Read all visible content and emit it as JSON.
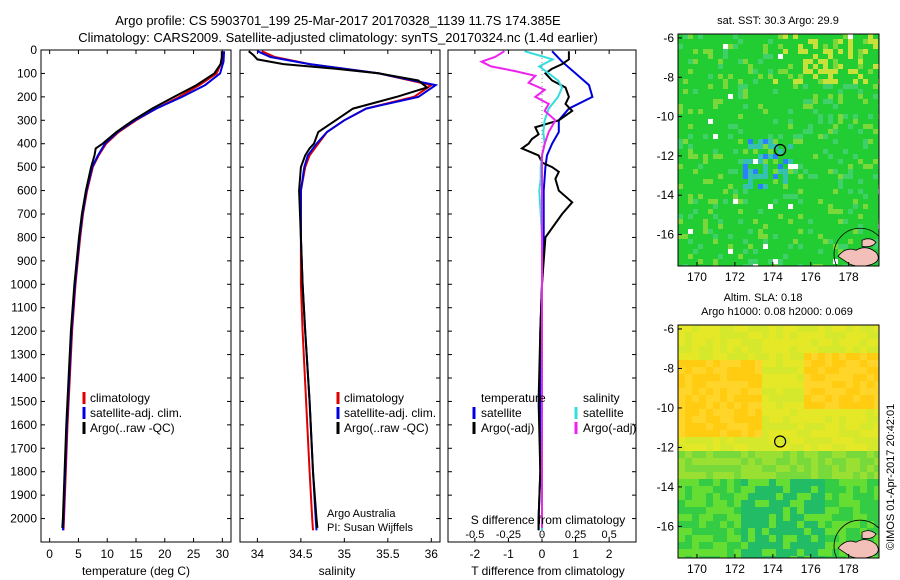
{
  "title_line1": "Argo profile: CS 5903701_199 25-Mar-2017 20170328_1139 11.7S 174.385E",
  "title_line2": "Climatology: CARS2009. Satellite-adjusted climatology: synTS_20170324.nc (1.4d earlier)",
  "side_stamp": "©IMOS 01-Apr-2017 20:42:01",
  "colors": {
    "climatology": "#dd0000",
    "satellite": "#0000dd",
    "argo": "#000000",
    "sal_satellite": "#33dddd",
    "sal_argo": "#ee22ee"
  },
  "chart_data": [
    {
      "type": "line",
      "id": "temperature",
      "xlabel": "temperature (deg C)",
      "ylabel": "depth",
      "xlim": [
        -1.5,
        31.5
      ],
      "ylim": [
        2100,
        0
      ],
      "xticks": [
        0,
        5,
        10,
        15,
        20,
        25,
        30
      ],
      "yticks": [
        0,
        100,
        200,
        300,
        400,
        500,
        600,
        700,
        800,
        900,
        1000,
        1100,
        1200,
        1300,
        1400,
        1500,
        1600,
        1700,
        1800,
        1900,
        2000
      ],
      "legend": [
        "climatology",
        "satellite-adj. clim.",
        "Argo(..raw -QC)"
      ],
      "series": [
        {
          "name": "climatology",
          "depth": [
            5,
            50,
            100,
            150,
            200,
            250,
            300,
            350,
            400,
            450,
            500,
            600,
            700,
            800,
            900,
            1000,
            1200,
            1400,
            1600,
            1800,
            2000,
            2050
          ],
          "values": [
            30.0,
            29.9,
            29.0,
            26.0,
            22.5,
            18.5,
            15.0,
            12.0,
            9.8,
            8.5,
            7.5,
            6.5,
            5.8,
            5.3,
            4.9,
            4.5,
            3.9,
            3.5,
            3.1,
            2.8,
            2.5,
            2.4
          ]
        },
        {
          "name": "satellite-adj. clim.",
          "depth": [
            5,
            50,
            100,
            150,
            200,
            250,
            300,
            350,
            400,
            450,
            500,
            600,
            700,
            800,
            900,
            1000,
            1200,
            1400,
            1600,
            1800,
            2000,
            2050
          ],
          "values": [
            30.3,
            30.2,
            29.6,
            27.0,
            23.0,
            18.5,
            14.8,
            11.8,
            9.6,
            8.4,
            7.4,
            6.4,
            5.7,
            5.2,
            4.8,
            4.4,
            3.8,
            3.4,
            3.0,
            2.7,
            2.4,
            2.3
          ]
        },
        {
          "name": "Argo(..raw -QC)",
          "depth": [
            5,
            30,
            60,
            100,
            150,
            200,
            250,
            300,
            350,
            400,
            420,
            450,
            500,
            600,
            700,
            800,
            900,
            1000,
            1200,
            1400,
            1600,
            1800,
            2000,
            2040
          ],
          "values": [
            29.9,
            29.9,
            29.7,
            28.6,
            25.5,
            21.6,
            17.8,
            14.5,
            11.6,
            9.2,
            8.0,
            7.8,
            7.2,
            6.3,
            5.6,
            5.1,
            4.7,
            4.3,
            3.7,
            3.3,
            2.9,
            2.6,
            2.3,
            2.2
          ]
        }
      ]
    },
    {
      "type": "line",
      "id": "salinity",
      "xlabel": "salinity",
      "ylim": [
        2100,
        0
      ],
      "xlim": [
        33.8,
        36.1
      ],
      "xticks": [
        34,
        34.5,
        35,
        35.5,
        36
      ],
      "legend": [
        "climatology",
        "satellite-adj. clim.",
        "Argo(..raw -QC)"
      ],
      "annotation": [
        "Argo Australia",
        "PI: Susan Wijffels"
      ],
      "series": [
        {
          "name": "climatology",
          "depth": [
            5,
            30,
            60,
            100,
            150,
            200,
            250,
            300,
            350,
            400,
            450,
            500,
            600,
            800,
            1000,
            1200,
            1500,
            1800,
            2000,
            2050
          ],
          "values": [
            34.05,
            34.2,
            34.6,
            35.4,
            36.0,
            35.8,
            35.25,
            35.0,
            34.8,
            34.7,
            34.6,
            34.55,
            34.5,
            34.5,
            34.5,
            34.52,
            34.56,
            34.6,
            34.63,
            34.64
          ]
        },
        {
          "name": "satellite-adj. clim.",
          "depth": [
            5,
            30,
            60,
            100,
            150,
            200,
            250,
            300,
            350,
            400,
            450,
            500,
            600,
            800,
            1000,
            1200,
            1500,
            1800,
            2000,
            2050
          ],
          "values": [
            34.0,
            34.15,
            34.6,
            35.4,
            36.05,
            35.85,
            35.25,
            35.0,
            34.8,
            34.68,
            34.58,
            34.54,
            34.5,
            34.5,
            34.52,
            34.55,
            34.6,
            34.64,
            34.67,
            34.68
          ]
        },
        {
          "name": "Argo(..raw -QC)",
          "depth": [
            5,
            20,
            40,
            60,
            80,
            100,
            130,
            160,
            200,
            250,
            300,
            350,
            400,
            420,
            450,
            500,
            600,
            800,
            1000,
            1200,
            1500,
            1800,
            2000,
            2040
          ],
          "values": [
            33.9,
            33.95,
            34.0,
            34.3,
            34.9,
            35.4,
            35.85,
            35.95,
            35.6,
            35.1,
            34.9,
            34.7,
            34.65,
            34.6,
            34.55,
            34.5,
            34.48,
            34.5,
            34.52,
            34.55,
            34.6,
            34.64,
            34.68,
            34.69
          ]
        }
      ]
    },
    {
      "type": "line",
      "id": "difference",
      "xlabel": "T difference from climatology",
      "xlabel_top": "S difference from climatology",
      "xlim": [
        -2.8,
        2.8
      ],
      "ylim": [
        2100,
        0
      ],
      "xticks": [
        -2,
        -1,
        0,
        1,
        2
      ],
      "sticks": [
        "-0.5",
        "-0.25",
        "0",
        "0.25",
        "0.5"
      ],
      "legend_titles": [
        "temperature",
        "salinity"
      ],
      "legend": [
        "satellite",
        "Argo(-adj)",
        "satellite",
        "Argo(-adj)"
      ],
      "series": [
        {
          "name": "temperature satellite",
          "depth": [
            5,
            50,
            100,
            150,
            200,
            250,
            300,
            350,
            400,
            450,
            500,
            600,
            700,
            800,
            1000,
            1200,
            1500,
            1800,
            2000,
            2050
          ],
          "values": [
            0.3,
            0.6,
            1.0,
            1.4,
            1.5,
            0.8,
            0.5,
            0.5,
            0.3,
            0.15,
            0.1,
            0.05,
            0.05,
            0.05,
            0.0,
            -0.05,
            -0.05,
            -0.05,
            -0.1,
            -0.1
          ]
        },
        {
          "name": "temperature Argo(-adj)",
          "depth": [
            5,
            40,
            60,
            80,
            100,
            130,
            160,
            200,
            230,
            260,
            300,
            330,
            360,
            380,
            400,
            420,
            450,
            480,
            500,
            520,
            550,
            600,
            650,
            700,
            800,
            1000,
            1200,
            1500,
            1800,
            2000,
            2050
          ],
          "values": [
            0.8,
            0.8,
            0.6,
            0.3,
            0.1,
            0.3,
            0.7,
            0.8,
            0.7,
            0.9,
            0.5,
            -0.2,
            -0.1,
            -0.3,
            -0.4,
            -0.6,
            -0.1,
            0.0,
            0.3,
            0.5,
            0.4,
            0.5,
            0.9,
            0.6,
            0.1,
            0.0,
            -0.05,
            -0.1,
            -0.05,
            -0.1,
            -0.1
          ]
        }
      ],
      "series_salinity": [
        {
          "name": "salinity satellite",
          "depth": [
            5,
            40,
            70,
            100,
            130,
            160,
            200,
            250,
            300,
            350,
            400,
            450,
            500,
            550,
            600,
            700,
            800,
            1000,
            1200,
            1500,
            1800,
            2000,
            2050
          ],
          "values": [
            -0.13,
            0.08,
            -0.02,
            0.05,
            0.12,
            0.15,
            0.12,
            0.05,
            0.02,
            0.01,
            0.02,
            0.0,
            -0.01,
            -0.01,
            -0.02,
            -0.01,
            0.0,
            0.0,
            0.0,
            0.0,
            0.0,
            0.0,
            0.0
          ]
        },
        {
          "name": "salinity Argo(-adj)",
          "depth": [
            5,
            30,
            50,
            70,
            90,
            110,
            140,
            170,
            200,
            230,
            260,
            300,
            350,
            400,
            450,
            500,
            600,
            800,
            1000,
            1200,
            1500,
            1800,
            2000,
            2040
          ],
          "values": [
            -0.28,
            -0.35,
            -0.45,
            -0.38,
            -0.2,
            -0.05,
            -0.1,
            0.02,
            -0.05,
            0.05,
            0.02,
            0.1,
            0.05,
            0.02,
            0.0,
            0.0,
            0.0,
            0.0,
            0.0,
            0.0,
            0.0,
            0.0,
            0.0,
            0.0
          ]
        }
      ]
    },
    {
      "type": "heatmap",
      "id": "sst_map",
      "title": "sat. SST: 30.3  Argo: 29.9",
      "xlim": [
        169,
        179.6
      ],
      "ylim": [
        -17.6,
        -5.8
      ],
      "xticks": [
        170,
        172,
        174,
        176,
        178
      ],
      "yticks": [
        -6,
        -8,
        -10,
        -12,
        -14,
        -16
      ],
      "marker": {
        "lon": 174.385,
        "lat": -11.7
      }
    },
    {
      "type": "heatmap",
      "id": "sla_map",
      "title_line1": "Altim. SLA: 0.18",
      "title_line2": "Argo h1000: 0.08 h2000: 0.069",
      "xlim": [
        169,
        179.6
      ],
      "ylim": [
        -17.6,
        -5.8
      ],
      "xticks": [
        170,
        172,
        174,
        176,
        178
      ],
      "yticks": [
        -6,
        -8,
        -10,
        -12,
        -14,
        -16
      ],
      "marker": {
        "lon": 174.385,
        "lat": -11.7
      }
    }
  ]
}
